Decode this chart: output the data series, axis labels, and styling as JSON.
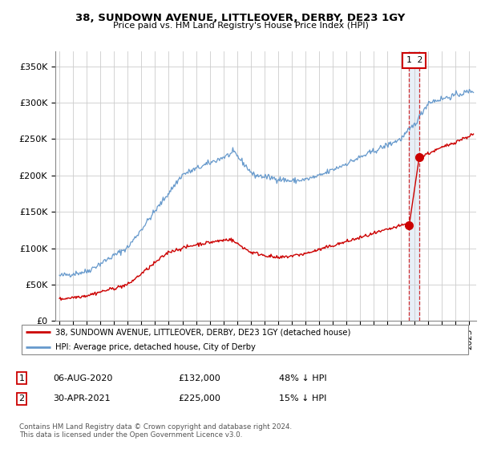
{
  "title": "38, SUNDOWN AVENUE, LITTLEOVER, DERBY, DE23 1GY",
  "subtitle": "Price paid vs. HM Land Registry's House Price Index (HPI)",
  "ylabel_ticks": [
    "£0",
    "£50K",
    "£100K",
    "£150K",
    "£200K",
    "£250K",
    "£300K",
    "£350K"
  ],
  "ytick_values": [
    0,
    50000,
    100000,
    150000,
    200000,
    250000,
    300000,
    350000
  ],
  "ylim": [
    0,
    370000
  ],
  "xlim_start": 1994.7,
  "xlim_end": 2025.5,
  "legend_line1": "38, SUNDOWN AVENUE, LITTLEOVER, DERBY, DE23 1GY (detached house)",
  "legend_line2": "HPI: Average price, detached house, City of Derby",
  "annotation1_num": "1",
  "annotation1_date": "06-AUG-2020",
  "annotation1_price": "£132,000",
  "annotation1_pct": "48% ↓ HPI",
  "annotation2_num": "2",
  "annotation2_date": "30-APR-2021",
  "annotation2_price": "£225,000",
  "annotation2_pct": "15% ↓ HPI",
  "footer": "Contains HM Land Registry data © Crown copyright and database right 2024.\nThis data is licensed under the Open Government Licence v3.0.",
  "red_color": "#cc0000",
  "blue_color": "#6699cc",
  "marker1_x": 2020.6,
  "marker1_y": 132000,
  "marker2_x": 2021.33,
  "marker2_y": 225000,
  "vline1_x": 2020.6,
  "vline2_x": 2021.33
}
